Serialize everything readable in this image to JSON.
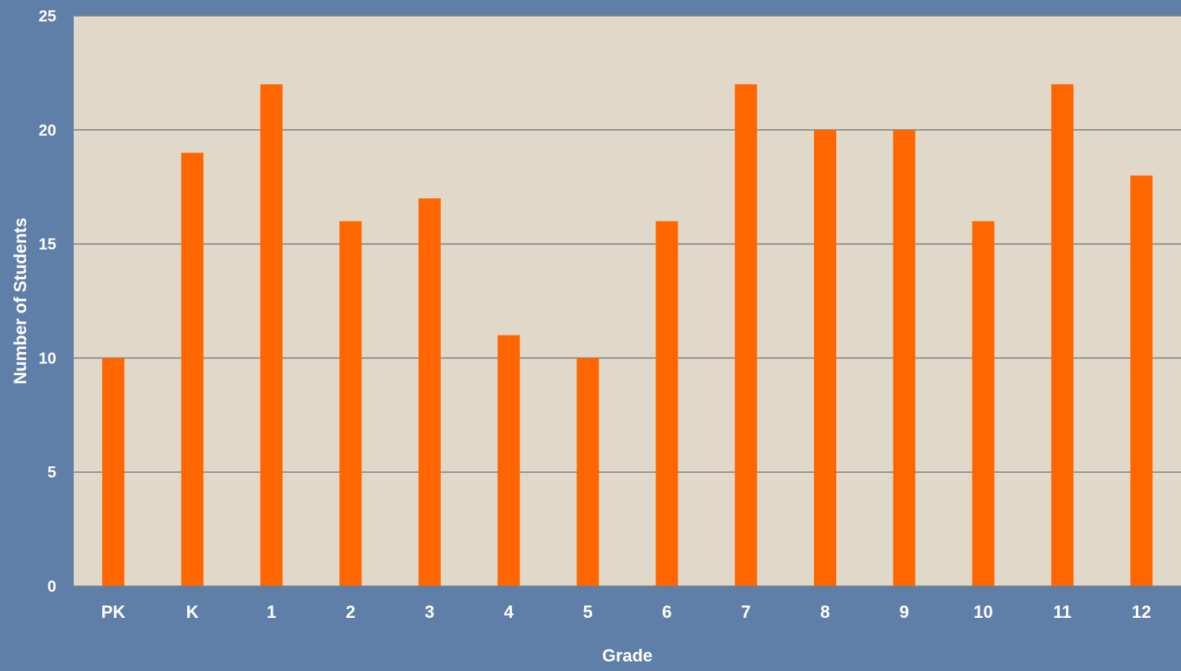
{
  "chart_data": {
    "type": "bar",
    "title": "",
    "xlabel": "Grade",
    "ylabel": "Number of Students",
    "categories": [
      "PK",
      "K",
      "1",
      "2",
      "3",
      "4",
      "5",
      "6",
      "7",
      "8",
      "9",
      "10",
      "11",
      "12"
    ],
    "values": [
      10,
      19,
      22,
      16,
      17,
      11,
      10,
      16,
      22,
      20,
      20,
      16,
      22,
      18
    ],
    "ylim": [
      0,
      25
    ],
    "yticks": [
      0,
      5,
      10,
      15,
      20,
      25
    ],
    "grid": true,
    "legend": "none"
  },
  "colors": {
    "background": "#5f7fa8",
    "plot_area": "#e0d8c8",
    "bar": "#ff6600",
    "gridline": "#7f7f7f",
    "text": "#ffffff"
  }
}
